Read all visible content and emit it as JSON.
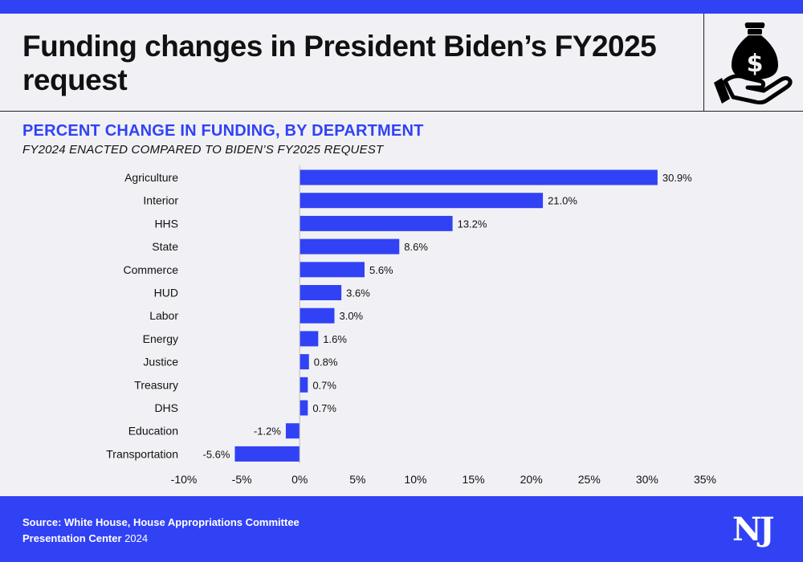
{
  "header": {
    "title": "Funding changes in President Biden’s FY2025 request",
    "icon": "money-bag-in-hand-icon"
  },
  "chart_data": {
    "type": "bar",
    "orientation": "horizontal",
    "title": "PERCENT CHANGE IN FUNDING, BY DEPARTMENT",
    "subtitle": "FY2024 ENACTED COMPARED TO BIDEN’S FY2025 REQUEST",
    "categories": [
      "Agriculture",
      "Interior",
      "HHS",
      "State",
      "Commerce",
      "HUD",
      "Labor",
      "Energy",
      "Justice",
      "Treasury",
      "DHS",
      "Education",
      "Transportation"
    ],
    "values": [
      30.9,
      21.0,
      13.2,
      8.6,
      5.6,
      3.6,
      3.0,
      1.6,
      0.8,
      0.7,
      0.7,
      -1.2,
      -5.6
    ],
    "data_labels": [
      "30.9%",
      "21.0%",
      "13.2%",
      "8.6%",
      "5.6%",
      "3.6%",
      "3.0%",
      "1.6%",
      "0.8%",
      "0.7%",
      "0.7%",
      "-1.2%",
      "-5.6%"
    ],
    "xlim": [
      -10,
      35
    ],
    "xticks": [
      -10,
      -5,
      0,
      5,
      10,
      15,
      20,
      25,
      30,
      35
    ],
    "xtick_labels": [
      "-10%",
      "-5%",
      "0%",
      "5%",
      "10%",
      "15%",
      "20%",
      "25%",
      "30%",
      "35%"
    ],
    "grid": false,
    "bar_color": "#3142f5"
  },
  "footer": {
    "source": "Source: White House, House Appropriations Committee",
    "credit_bold": "Presentation Center",
    "credit_year": " 2024",
    "logo": "NJ"
  },
  "colors": {
    "accent": "#3142f5",
    "background": "#f1f1f5"
  }
}
